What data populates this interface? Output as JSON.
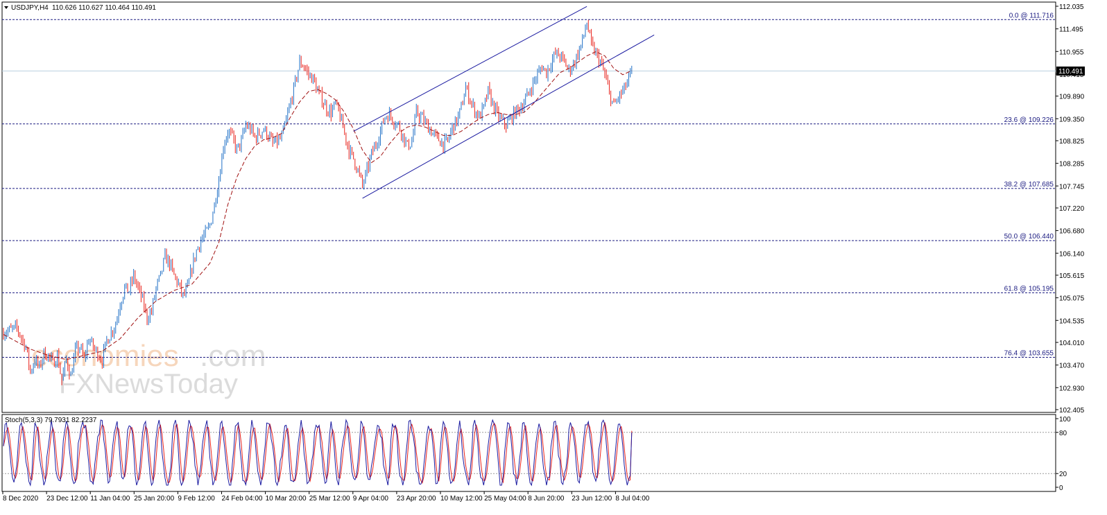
{
  "header": {
    "symbol": "USDJPY,H4",
    "ohlc": "110.626 110.627 110.464 110.491"
  },
  "colors": {
    "bear_candle": "#e8211a",
    "bull_candle": "#1e6fc6",
    "moving_average": "#a01010",
    "channel": "#1a1aa0",
    "fib_line": "#1a1a80",
    "current_price_line": "#b9cfe0",
    "stoch_main": "#1a1aa0",
    "stoch_signal": "#e8211a"
  },
  "watermark": {
    "brand_main": "economies",
    "brand_suffix": ".com",
    "brand_sub": "FXNewsToday"
  },
  "chart_data": {
    "type": "candlestick",
    "instrument": "USDJPY",
    "timeframe": "H4",
    "current_price": "110.491",
    "y_ticks": [
      "112.035",
      "111.495",
      "110.955",
      "110.415",
      "109.890",
      "109.350",
      "108.825",
      "108.285",
      "107.745",
      "107.220",
      "106.680",
      "106.140",
      "105.615",
      "105.075",
      "104.535",
      "104.010",
      "103.470",
      "102.930",
      "102.405"
    ],
    "ylim": [
      102.405,
      112.035
    ],
    "x_ticks": [
      "8 Dec 2020",
      "23 Dec 12:00",
      "11 Jan 04:00",
      "25 Jan 20:00",
      "9 Feb 12:00",
      "24 Feb 04:00",
      "10 Mar 20:00",
      "25 Mar 12:00",
      "9 Apr 04:00",
      "23 Apr 20:00",
      "10 May 12:00",
      "25 May 04:00",
      "8 Jun 20:00",
      "23 Jun 12:00",
      "8 Jul 04:00"
    ],
    "fib_levels": [
      {
        "label": "0.0 @ 111.716",
        "value": 111.716
      },
      {
        "label": "23.6 @ 109.226",
        "value": 109.226
      },
      {
        "label": "38.2 @ 107.685",
        "value": 107.685
      },
      {
        "label": "50.0 @ 106.440",
        "value": 106.44
      },
      {
        "label": "61.8 @ 105.195",
        "value": 105.195
      },
      {
        "label": "76.4 @ 103.655",
        "value": 103.655
      }
    ],
    "price_path": [
      [
        0,
        104.25
      ],
      [
        3,
        104.35
      ],
      [
        5,
        103.9
      ],
      [
        6,
        103.3
      ],
      [
        7,
        103.6
      ],
      [
        8,
        103.4
      ],
      [
        9,
        103.75
      ],
      [
        10,
        103.7
      ],
      [
        11,
        103.5
      ],
      [
        12,
        103.7
      ],
      [
        13,
        103.1
      ],
      [
        14,
        103.6
      ],
      [
        15,
        103.2
      ],
      [
        16,
        103.8
      ],
      [
        17,
        103.9
      ],
      [
        18,
        103.6
      ],
      [
        19,
        104.1
      ],
      [
        20,
        103.9
      ],
      [
        21,
        103.75
      ],
      [
        22,
        103.6
      ],
      [
        23,
        104.05
      ],
      [
        25,
        104.45
      ],
      [
        26,
        104.95
      ],
      [
        27,
        105.3
      ],
      [
        28,
        105.25
      ],
      [
        29,
        105.6
      ],
      [
        30,
        105.3
      ],
      [
        31,
        105.0
      ],
      [
        32,
        104.6
      ],
      [
        33,
        104.75
      ],
      [
        34,
        105.3
      ],
      [
        35,
        105.6
      ],
      [
        36,
        106.05
      ],
      [
        37,
        105.9
      ],
      [
        38,
        105.6
      ],
      [
        39,
        105.4
      ],
      [
        40,
        105.1
      ],
      [
        41,
        105.3
      ],
      [
        42,
        105.8
      ],
      [
        43,
        106.2
      ],
      [
        44,
        106.45
      ],
      [
        45,
        106.6
      ],
      [
        46,
        106.8
      ],
      [
        47,
        107.3
      ],
      [
        48,
        107.9
      ],
      [
        49,
        108.7
      ],
      [
        50,
        109.05
      ],
      [
        51,
        108.9
      ],
      [
        52,
        108.6
      ],
      [
        53,
        108.8
      ],
      [
        54,
        109.2
      ],
      [
        55,
        109.1
      ],
      [
        56,
        108.9
      ],
      [
        57,
        109.0
      ],
      [
        58,
        109.1
      ],
      [
        59,
        108.95
      ],
      [
        60,
        108.75
      ],
      [
        61,
        108.8
      ],
      [
        62,
        108.9
      ],
      [
        63,
        109.3
      ],
      [
        64,
        109.75
      ],
      [
        65,
        110.2
      ],
      [
        66,
        110.7
      ],
      [
        67,
        110.6
      ],
      [
        68,
        110.4
      ],
      [
        69,
        110.3
      ],
      [
        70,
        110.0
      ],
      [
        71,
        109.8
      ],
      [
        72,
        109.6
      ],
      [
        73,
        109.5
      ],
      [
        74,
        109.7
      ],
      [
        75,
        109.4
      ],
      [
        76,
        109.0
      ],
      [
        77,
        108.6
      ],
      [
        78,
        108.4
      ],
      [
        79,
        108.1
      ],
      [
        80,
        107.75
      ],
      [
        81,
        108.1
      ],
      [
        82,
        108.5
      ],
      [
        83,
        108.75
      ],
      [
        84,
        109.05
      ],
      [
        85,
        109.4
      ],
      [
        86,
        109.45
      ],
      [
        87,
        109.3
      ],
      [
        88,
        109.2
      ],
      [
        89,
        108.95
      ],
      [
        90,
        108.7
      ],
      [
        91,
        108.8
      ],
      [
        92,
        109.5
      ],
      [
        93,
        109.4
      ],
      [
        94,
        109.25
      ],
      [
        95,
        109.1
      ],
      [
        96,
        108.95
      ],
      [
        97,
        108.85
      ],
      [
        98,
        108.75
      ],
      [
        99,
        108.8
      ],
      [
        100,
        109.15
      ],
      [
        101,
        109.3
      ],
      [
        102,
        109.6
      ],
      [
        103,
        110.1
      ],
      [
        104,
        109.8
      ],
      [
        105,
        109.55
      ],
      [
        106,
        109.4
      ],
      [
        107,
        109.6
      ],
      [
        108,
        110.0
      ],
      [
        109,
        109.7
      ],
      [
        110,
        109.45
      ],
      [
        111,
        109.3
      ],
      [
        112,
        109.2
      ],
      [
        113,
        109.35
      ],
      [
        114,
        109.5
      ],
      [
        115,
        109.6
      ],
      [
        116,
        109.75
      ],
      [
        117,
        109.95
      ],
      [
        118,
        110.2
      ],
      [
        119,
        110.4
      ],
      [
        120,
        110.6
      ],
      [
        121,
        110.45
      ],
      [
        122,
        110.7
      ],
      [
        123,
        110.9
      ],
      [
        124,
        110.85
      ],
      [
        125,
        110.7
      ],
      [
        126,
        110.5
      ],
      [
        127,
        110.65
      ],
      [
        128,
        110.9
      ],
      [
        129,
        111.2
      ],
      [
        130,
        111.65
      ],
      [
        131,
        111.1
      ],
      [
        132,
        110.9
      ],
      [
        133,
        110.7
      ],
      [
        134,
        110.4
      ],
      [
        135,
        109.95
      ],
      [
        136,
        109.65
      ],
      [
        137,
        109.85
      ],
      [
        138,
        110.0
      ],
      [
        139,
        110.2
      ],
      [
        140,
        110.491
      ]
    ],
    "moving_average_path": [
      [
        0,
        104.2
      ],
      [
        6,
        103.85
      ],
      [
        10,
        103.7
      ],
      [
        14,
        103.6
      ],
      [
        18,
        103.7
      ],
      [
        22,
        103.8
      ],
      [
        26,
        104.1
      ],
      [
        30,
        104.6
      ],
      [
        34,
        105.0
      ],
      [
        38,
        105.25
      ],
      [
        42,
        105.4
      ],
      [
        46,
        105.9
      ],
      [
        48,
        106.4
      ],
      [
        50,
        107.3
      ],
      [
        52,
        107.95
      ],
      [
        54,
        108.4
      ],
      [
        56,
        108.7
      ],
      [
        58,
        108.85
      ],
      [
        60,
        108.9
      ],
      [
        62,
        109.0
      ],
      [
        64,
        109.4
      ],
      [
        66,
        109.75
      ],
      [
        68,
        110.0
      ],
      [
        70,
        110.05
      ],
      [
        72,
        109.95
      ],
      [
        74,
        109.8
      ],
      [
        76,
        109.5
      ],
      [
        78,
        109.1
      ],
      [
        80,
        108.6
      ],
      [
        82,
        108.3
      ],
      [
        84,
        108.45
      ],
      [
        86,
        108.75
      ],
      [
        88,
        109.0
      ],
      [
        90,
        109.15
      ],
      [
        92,
        109.2
      ],
      [
        94,
        109.15
      ],
      [
        96,
        109.05
      ],
      [
        98,
        108.95
      ],
      [
        100,
        108.95
      ],
      [
        102,
        109.05
      ],
      [
        104,
        109.2
      ],
      [
        106,
        109.35
      ],
      [
        108,
        109.45
      ],
      [
        110,
        109.5
      ],
      [
        112,
        109.45
      ],
      [
        114,
        109.45
      ],
      [
        116,
        109.5
      ],
      [
        118,
        109.7
      ],
      [
        120,
        109.95
      ],
      [
        122,
        110.2
      ],
      [
        124,
        110.45
      ],
      [
        126,
        110.55
      ],
      [
        128,
        110.7
      ],
      [
        130,
        110.85
      ],
      [
        132,
        110.95
      ],
      [
        134,
        110.85
      ],
      [
        136,
        110.55
      ],
      [
        138,
        110.4
      ],
      [
        140,
        110.5
      ]
    ],
    "channel": {
      "upper": [
        [
          78,
          109.05
        ],
        [
          130,
          112.03
        ]
      ],
      "lower": [
        [
          80,
          107.45
        ],
        [
          145,
          111.35
        ]
      ]
    },
    "stochastic": {
      "label": "Stoch(5,3,3) 79.7931 82.2237",
      "main": 79.7931,
      "signal": 82.2237,
      "y_ticks": [
        "100",
        "80",
        "20",
        "0"
      ],
      "levels": [
        80,
        20
      ],
      "ylim": [
        0,
        100
      ]
    }
  }
}
